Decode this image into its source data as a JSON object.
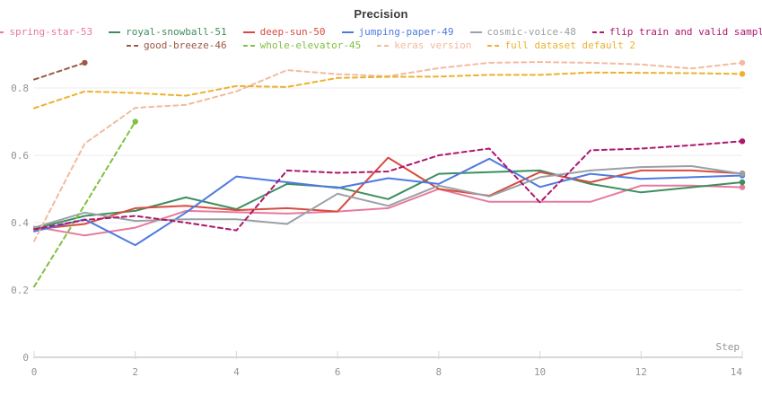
{
  "chart": {
    "title": "Precision",
    "x_axis_label": "Step",
    "x_tick_labels": [
      "0",
      "2",
      "4",
      "6",
      "8",
      "10",
      "12",
      "14"
    ],
    "y_tick_labels": [
      "0",
      "0.2",
      "0.4",
      "0.6",
      "0.8"
    ],
    "grid_color": "#ececec",
    "axis_color": "#d8d8d8",
    "tick_text_color": "#909499"
  },
  "legend": [
    {
      "label": "spring-star-53",
      "color": "#e8799f",
      "dashed": false,
      "row": 1
    },
    {
      "label": "royal-snowball-51",
      "color": "#3d8e5f",
      "dashed": false,
      "row": 1
    },
    {
      "label": "deep-sun-50",
      "color": "#d84b40",
      "dashed": false,
      "row": 1
    },
    {
      "label": "jumping-paper-49",
      "color": "#4e7ae0",
      "dashed": false,
      "row": 1
    },
    {
      "label": "cosmic-voice-48",
      "color": "#9aa0a6",
      "dashed": false,
      "row": 1
    },
    {
      "label": "flip train and valid sample",
      "color": "#ad176d",
      "dashed": true,
      "row": 1
    },
    {
      "label": "good-breeze-46",
      "color": "#9d5844",
      "dashed": true,
      "row": 2
    },
    {
      "label": "whole-elevator-45",
      "color": "#7fc142",
      "dashed": true,
      "row": 2
    },
    {
      "label": "keras version",
      "color": "#f2bb9e",
      "dashed": true,
      "row": 2
    },
    {
      "label": "full dataset default 2",
      "color": "#ecb22e",
      "dashed": true,
      "row": 2
    }
  ],
  "chart_data": {
    "type": "line",
    "title": "Precision",
    "xlabel": "Step",
    "ylabel": "",
    "x_range": [
      0,
      14
    ],
    "y_range": [
      0,
      0.9
    ],
    "x_ticks": [
      0,
      2,
      4,
      6,
      8,
      10,
      12,
      14
    ],
    "y_ticks": [
      0,
      0.2,
      0.4,
      0.6,
      0.8
    ],
    "grid": "horizontal",
    "legend_position": "top",
    "series": [
      {
        "name": "spring-star-53",
        "color": "#e8799f",
        "dashed": false,
        "x": [
          0,
          1,
          2,
          3,
          4,
          5,
          6,
          7,
          8,
          9,
          10,
          11,
          12,
          13,
          14
        ],
        "values": [
          0.388,
          0.362,
          0.385,
          0.435,
          0.431,
          0.427,
          0.433,
          0.443,
          0.5,
          0.462,
          0.462,
          0.462,
          0.51,
          0.51,
          0.505
        ]
      },
      {
        "name": "royal-snowball-51",
        "color": "#3d8e5f",
        "dashed": false,
        "x": [
          0,
          1,
          2,
          3,
          4,
          5,
          6,
          7,
          8,
          9,
          10,
          11,
          12,
          13,
          14
        ],
        "values": [
          0.382,
          0.42,
          0.435,
          0.475,
          0.44,
          0.515,
          0.505,
          0.47,
          0.545,
          0.55,
          0.555,
          0.515,
          0.49,
          0.505,
          0.52
        ]
      },
      {
        "name": "deep-sun-50",
        "color": "#d84b40",
        "dashed": false,
        "x": [
          0,
          1,
          2,
          3,
          4,
          5,
          6,
          7,
          8,
          9,
          10,
          11,
          12,
          13,
          14
        ],
        "values": [
          0.38,
          0.396,
          0.443,
          0.45,
          0.437,
          0.443,
          0.433,
          0.593,
          0.5,
          0.48,
          0.55,
          0.52,
          0.555,
          0.555,
          0.546
        ]
      },
      {
        "name": "jumping-paper-49",
        "color": "#4e7ae0",
        "dashed": false,
        "x": [
          0,
          1,
          2,
          3,
          4,
          5,
          6,
          7,
          8,
          9,
          10,
          11,
          12,
          13,
          14
        ],
        "values": [
          0.374,
          0.41,
          0.333,
          0.43,
          0.537,
          0.52,
          0.503,
          0.532,
          0.515,
          0.59,
          0.506,
          0.545,
          0.53,
          0.535,
          0.54
        ]
      },
      {
        "name": "cosmic-voice-48",
        "color": "#9aa0a6",
        "dashed": false,
        "x": [
          0,
          1,
          2,
          3,
          4,
          5,
          6,
          7,
          8,
          9,
          10,
          11,
          12,
          13,
          14
        ],
        "values": [
          0.385,
          0.43,
          0.405,
          0.41,
          0.41,
          0.396,
          0.486,
          0.45,
          0.51,
          0.478,
          0.535,
          0.555,
          0.565,
          0.568,
          0.545
        ]
      },
      {
        "name": "good-breeze-46",
        "color": "#9d5844",
        "dashed": true,
        "x": [
          0,
          1
        ],
        "values": [
          0.825,
          0.875
        ]
      },
      {
        "name": "whole-elevator-45",
        "color": "#7fc142",
        "dashed": true,
        "x": [
          0,
          1,
          2
        ],
        "values": [
          0.21,
          0.453,
          0.7
        ]
      },
      {
        "name": "keras version",
        "color": "#f2bb9e",
        "dashed": true,
        "x": [
          0,
          1,
          2,
          3,
          4,
          5,
          6,
          7,
          8,
          9,
          10,
          11,
          12,
          13,
          14
        ],
        "values": [
          0.345,
          0.635,
          0.741,
          0.75,
          0.79,
          0.853,
          0.841,
          0.835,
          0.859,
          0.875,
          0.877,
          0.875,
          0.87,
          0.858,
          0.875
        ]
      },
      {
        "name": "full dataset default 2",
        "color": "#ecb22e",
        "dashed": true,
        "x": [
          0,
          1,
          2,
          3,
          4,
          5,
          6,
          7,
          8,
          9,
          10,
          11,
          12,
          13,
          14
        ],
        "values": [
          0.74,
          0.79,
          0.785,
          0.777,
          0.806,
          0.803,
          0.83,
          0.833,
          0.834,
          0.839,
          0.839,
          0.846,
          0.845,
          0.844,
          0.842
        ]
      },
      {
        "name": "flip train and valid sample",
        "color": "#ad176d",
        "dashed": true,
        "x": [
          0,
          1,
          2,
          3,
          4,
          5,
          6,
          7,
          8,
          9,
          10,
          11,
          12,
          13,
          14
        ],
        "values": [
          0.38,
          0.408,
          0.42,
          0.4,
          0.377,
          0.555,
          0.548,
          0.552,
          0.6,
          0.62,
          0.46,
          0.615,
          0.62,
          0.63,
          0.642
        ]
      }
    ]
  }
}
